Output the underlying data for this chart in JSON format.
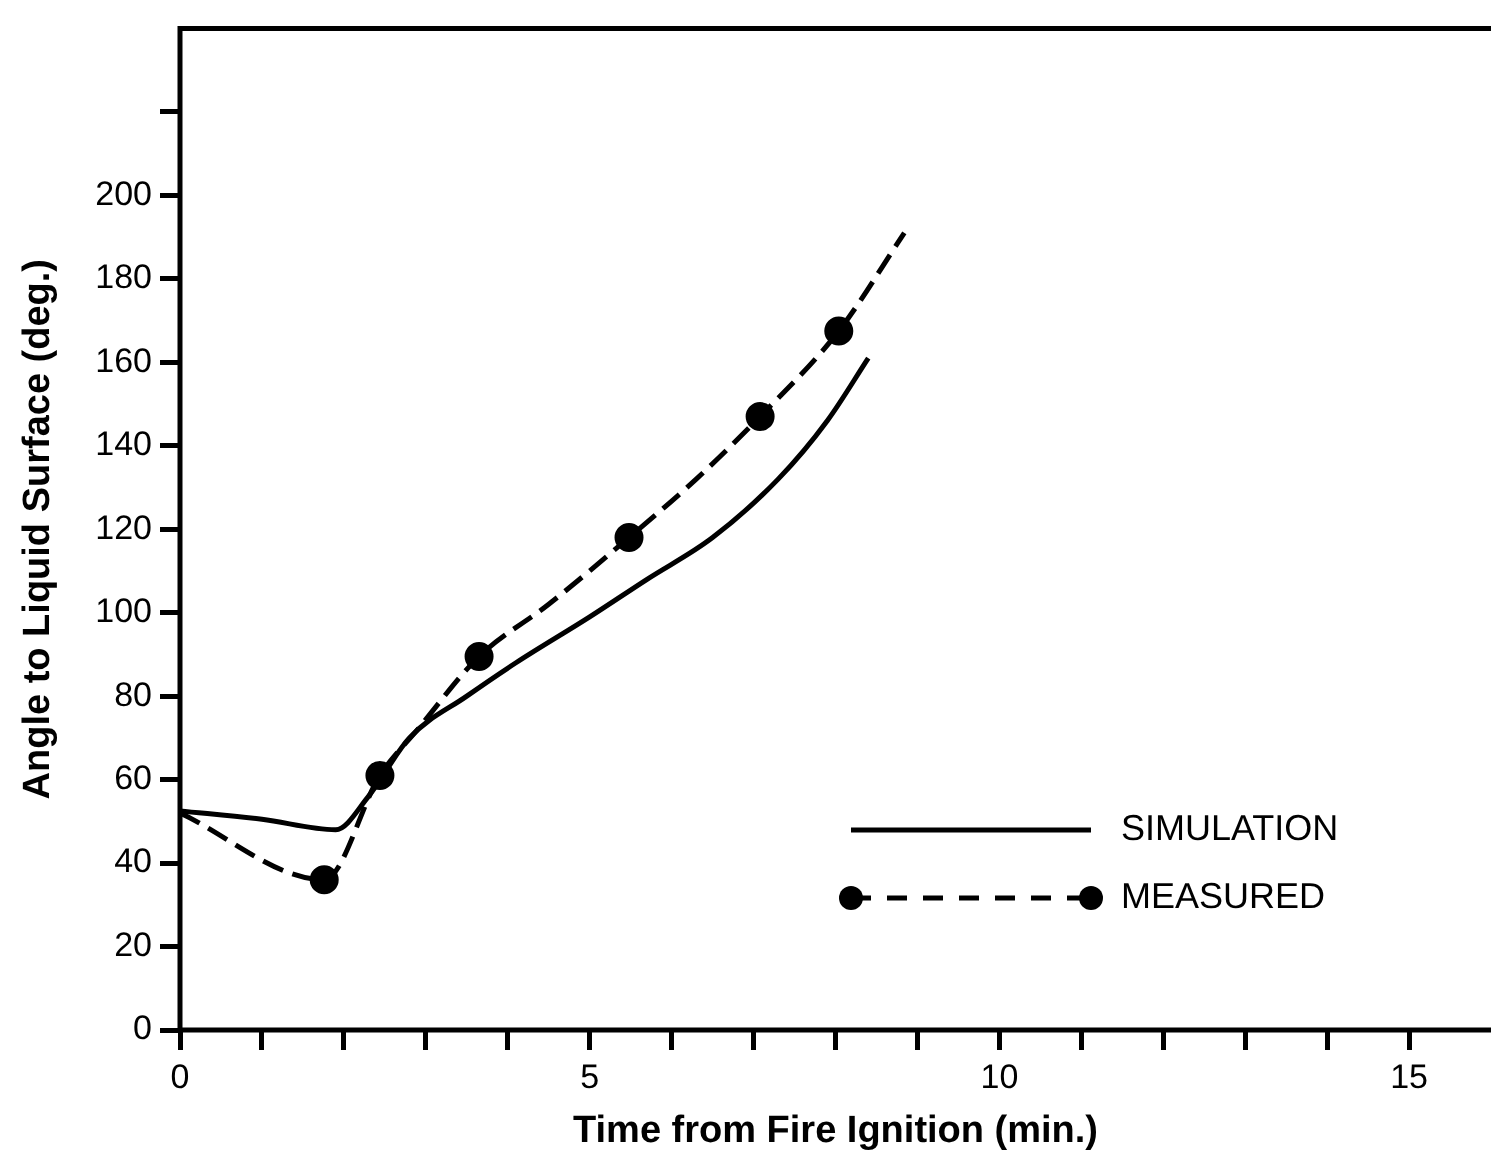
{
  "chart_data": {
    "type": "line",
    "xlabel": "Time from Fire Ignition (min.)",
    "ylabel": "Angle to Liquid Surface (deg.)",
    "xlim": [
      0,
      16
    ],
    "ylim": [
      0,
      240
    ],
    "xticks": [
      0,
      {
        "value": 1,
        "label": null
      },
      {
        "value": 2,
        "label": null
      },
      {
        "value": 3,
        "label": null
      },
      {
        "value": 4,
        "label": null
      },
      5,
      {
        "value": 6,
        "label": null
      },
      {
        "value": 7,
        "label": null
      },
      {
        "value": 8,
        "label": null
      },
      {
        "value": 9,
        "label": null
      },
      10,
      {
        "value": 11,
        "label": null
      },
      {
        "value": 12,
        "label": null
      },
      {
        "value": 13,
        "label": null
      },
      {
        "value": 14,
        "label": null
      },
      15
    ],
    "yticks": [
      0,
      20,
      40,
      60,
      80,
      100,
      120,
      140,
      160,
      180,
      200,
      {
        "value": 220,
        "label": null
      }
    ],
    "grid": false,
    "legend": "bottom right",
    "series": [
      {
        "name": "SIMULATION",
        "color": "#000000",
        "line_style": "solid",
        "marker": "none",
        "x": [
          0,
          1,
          1.9,
          2.3,
          2.8,
          3.5,
          4.1,
          5,
          5.7,
          6.5,
          7.3,
          7.9,
          8.4
        ],
        "values": [
          52.5,
          50.5,
          48,
          56,
          70,
          80,
          88,
          99,
          108,
          118,
          132,
          146,
          161
        ]
      },
      {
        "name": "MEASURED",
        "type": "scatter",
        "color": "#000000",
        "marker": "circle",
        "x": [
          1.76,
          2.44,
          3.65,
          5.48,
          7.08,
          8.04
        ],
        "values": [
          36,
          61,
          89.5,
          118,
          147,
          167.5
        ]
      },
      {
        "color": "#000000",
        "line_style": "dashed",
        "marker": "none",
        "x": [
          0,
          1.76,
          2.44,
          2.9,
          3.65,
          4.5,
          5.48,
          6.3,
          7.08,
          8.04,
          8.84
        ],
        "values": [
          52,
          36,
          61,
          72,
          89.5,
          102,
          118,
          132,
          147,
          167.5,
          191
        ]
      }
    ]
  }
}
